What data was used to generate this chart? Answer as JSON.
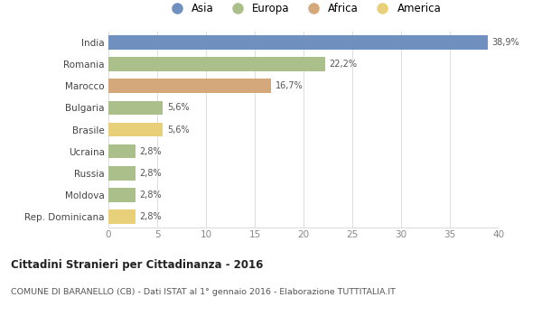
{
  "countries": [
    "India",
    "Romania",
    "Marocco",
    "Bulgaria",
    "Brasile",
    "Ucraina",
    "Russia",
    "Moldova",
    "Rep. Dominicana"
  ],
  "values": [
    38.9,
    22.2,
    16.7,
    5.6,
    5.6,
    2.8,
    2.8,
    2.8,
    2.8
  ],
  "labels": [
    "38,9%",
    "22,2%",
    "16,7%",
    "5,6%",
    "5,6%",
    "2,8%",
    "2,8%",
    "2,8%",
    "2,8%"
  ],
  "colors": [
    "#7090c0",
    "#aabf8a",
    "#d4a87a",
    "#aabf8a",
    "#e8d07a",
    "#aabf8a",
    "#aabf8a",
    "#aabf8a",
    "#e8d07a"
  ],
  "legend_labels": [
    "Asia",
    "Europa",
    "Africa",
    "America"
  ],
  "legend_colors": [
    "#7090c0",
    "#aabf8a",
    "#d4a87a",
    "#e8d07a"
  ],
  "title": "Cittadini Stranieri per Cittadinanza - 2016",
  "subtitle": "COMUNE DI BARANELLO (CB) - Dati ISTAT al 1° gennaio 2016 - Elaborazione TUTTITALIA.IT",
  "xlim": [
    0,
    40
  ],
  "xticks": [
    0,
    5,
    10,
    15,
    20,
    25,
    30,
    35,
    40
  ],
  "background_color": "#ffffff",
  "grid_color": "#dddddd"
}
